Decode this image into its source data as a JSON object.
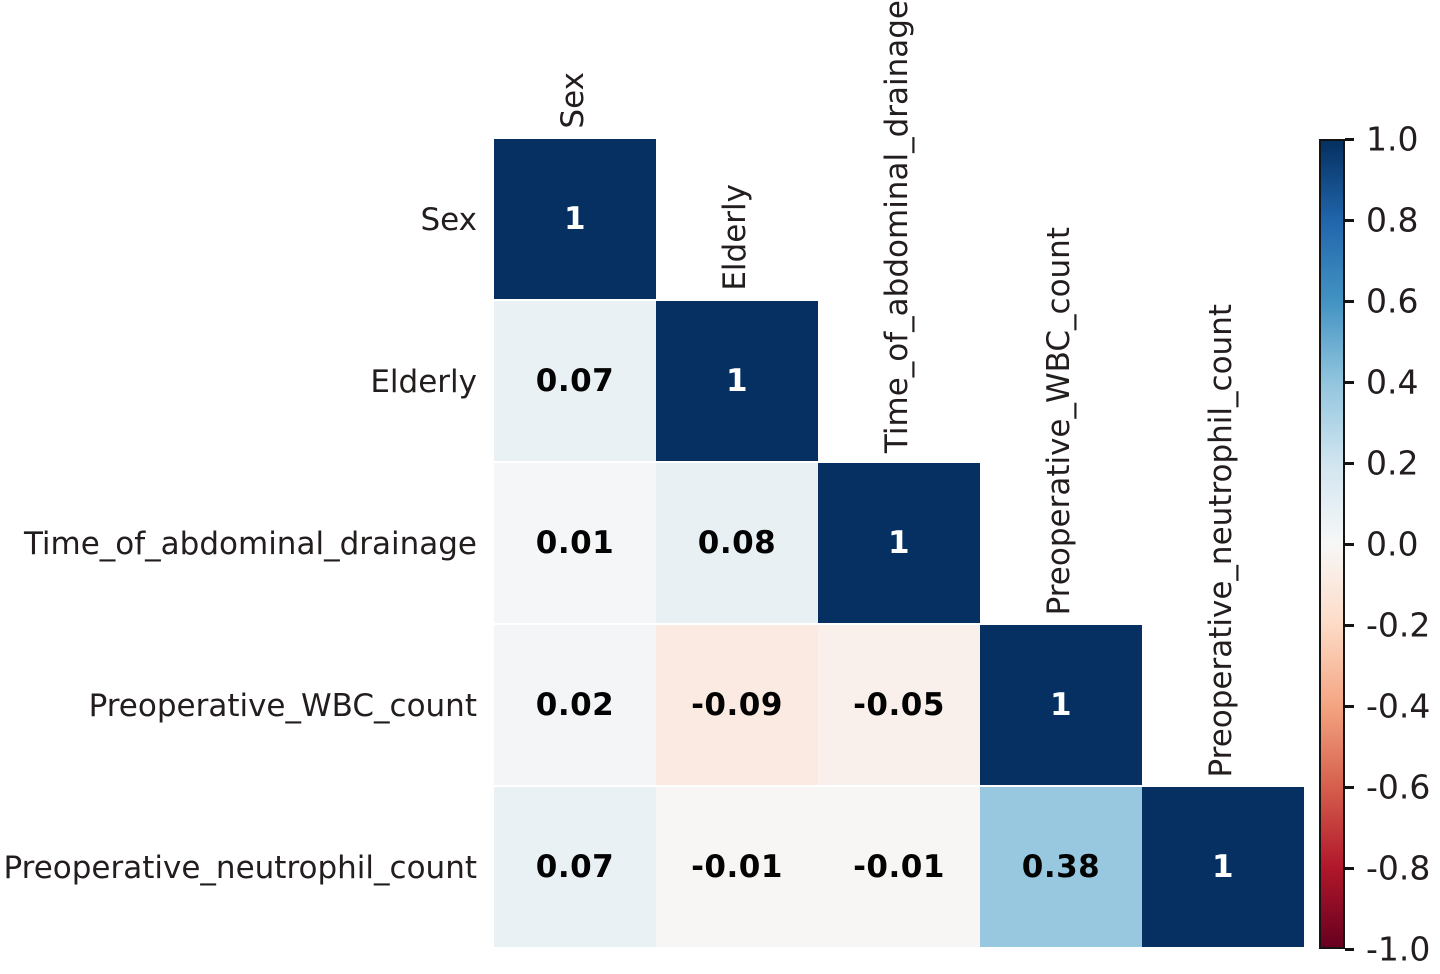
{
  "chart_data": {
    "type": "heatmap",
    "subtype": "correlation_matrix_lower_triangle",
    "title": "",
    "variables": [
      "Sex",
      "Elderly",
      "Time_of_abdominal_drainage",
      "Preoperative_WBC_count",
      "Preoperative_neutrophil_count"
    ],
    "matrix_lower_triangle": [
      [
        1
      ],
      [
        0.07,
        1
      ],
      [
        0.01,
        0.08,
        1
      ],
      [
        0.02,
        -0.09,
        -0.05,
        1
      ],
      [
        0.07,
        -0.01,
        -0.01,
        0.38,
        1
      ]
    ],
    "cell_labels": [
      [
        "1"
      ],
      [
        "0.07",
        "1"
      ],
      [
        "0.01",
        "0.08",
        "1"
      ],
      [
        "0.02",
        "-0.09",
        "-0.05",
        "1"
      ],
      [
        "0.07",
        "-0.01",
        "-0.01",
        "0.38",
        "1"
      ]
    ],
    "colormap": {
      "name": "RdBu_r",
      "anchors_from_minus1_to_plus1": [
        "#67001f",
        "#b2182b",
        "#d6604d",
        "#f4a582",
        "#fddbc7",
        "#f7f7f7",
        "#d1e5f0",
        "#92c5de",
        "#4393c3",
        "#2166ac",
        "#053061"
      ]
    },
    "colorbar": {
      "min": -1.0,
      "max": 1.0,
      "position": "right",
      "tick_labels_top_to_bottom": [
        "1.0",
        "0.8",
        "0.6",
        "0.4",
        "0.2",
        "0.0",
        "-0.2",
        "-0.4",
        "-0.6",
        "-0.8",
        "-1.0"
      ]
    },
    "grid": false,
    "legend_position": "right"
  },
  "style_colors": {
    "background": "#ffffff",
    "label_text": "#231d1d",
    "cell_text_dark": "#030303",
    "cell_text_light": "#ffffff",
    "colorbar_border": "#141414",
    "tick_mark": "#141414"
  }
}
